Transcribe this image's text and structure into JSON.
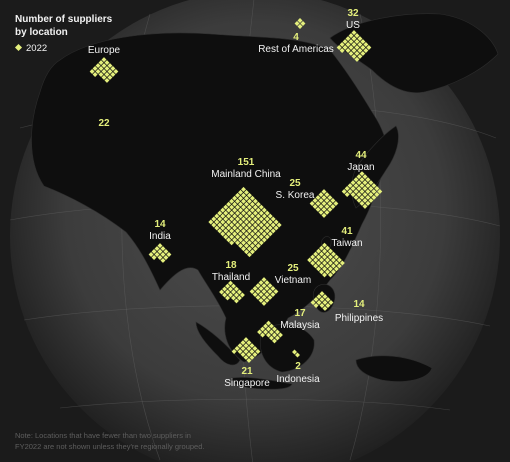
{
  "chart_data": {
    "type": "map",
    "title": "Number of suppliers by location",
    "title_lines": [
      "Number of suppliers",
      "by location"
    ],
    "legend": [
      {
        "label": "2022",
        "color": "#e4ef7c"
      }
    ],
    "locations": [
      {
        "name": "Mainland China",
        "value": 151
      },
      {
        "name": "Japan",
        "value": 44
      },
      {
        "name": "Taiwan",
        "value": 41
      },
      {
        "name": "US",
        "value": 32
      },
      {
        "name": "S. Korea",
        "value": 25
      },
      {
        "name": "Vietnam",
        "value": 25
      },
      {
        "name": "Europe",
        "value": 22
      },
      {
        "name": "Singapore",
        "value": 21
      },
      {
        "name": "Thailand",
        "value": 18
      },
      {
        "name": "Malaysia",
        "value": 17
      },
      {
        "name": "India",
        "value": 14
      },
      {
        "name": "Philippines",
        "value": 14
      },
      {
        "name": "Rest of Americas",
        "value": 4
      },
      {
        "name": "Indonesia",
        "value": 2
      }
    ],
    "note_lines": [
      "Note: Locations that have fewer than two suppliers in",
      "FY2022 are not shown unless they're regionally grouped."
    ]
  },
  "colors": {
    "background": "#1b1b1b",
    "globe": "#4a4a4a",
    "land": "#0e0e0e",
    "accent": "#e4ef7c",
    "text": "#f2f2f2",
    "note": "#5e5e5e"
  }
}
